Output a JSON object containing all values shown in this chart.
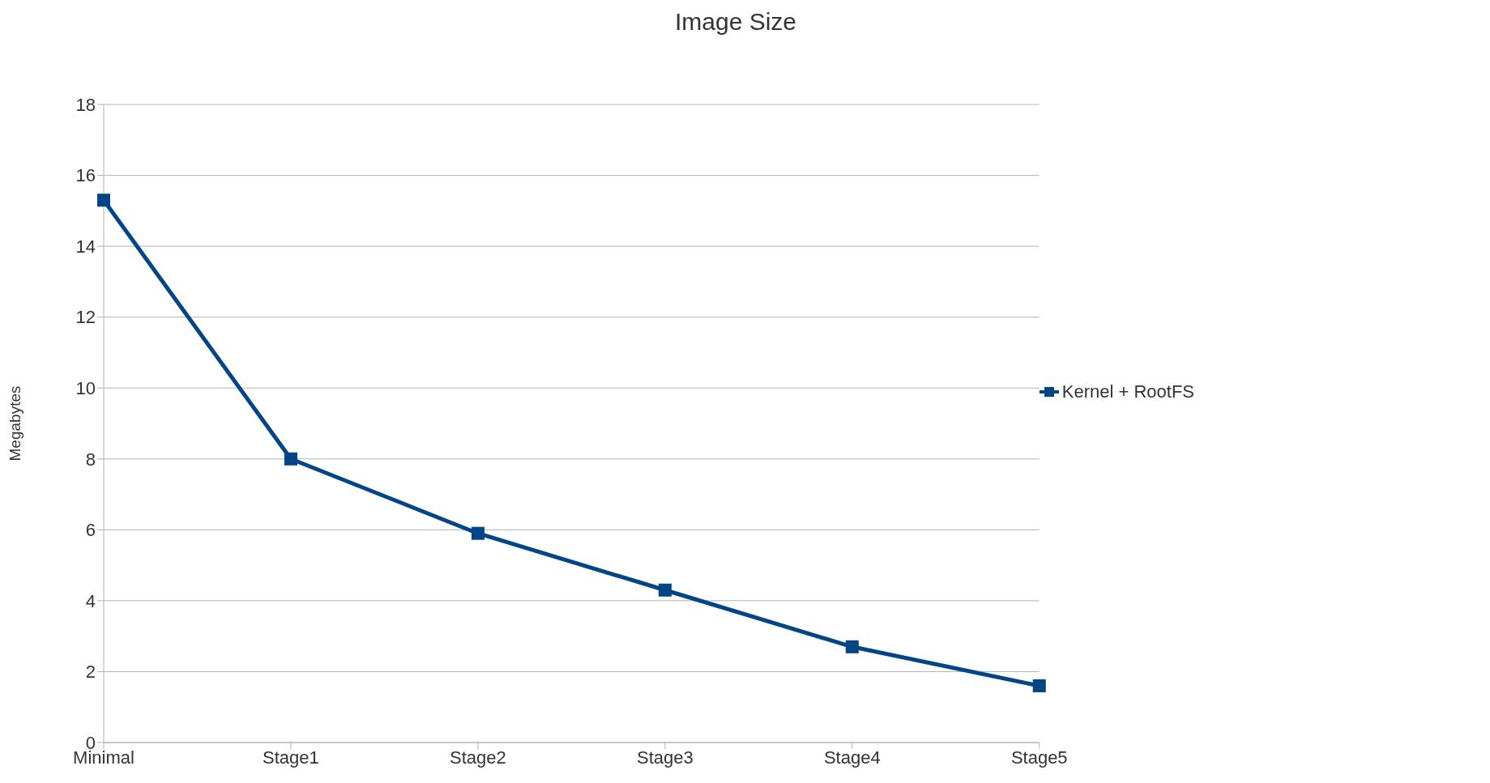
{
  "chart_data": {
    "type": "line",
    "title": "Image Size",
    "ylabel": "Megabytes",
    "categories": [
      "Minimal",
      "Stage1",
      "Stage2",
      "Stage3",
      "Stage4",
      "Stage5"
    ],
    "series": [
      {
        "name": "Kernel + RootFS",
        "color": "#004586",
        "values": [
          15.3,
          8.0,
          5.9,
          4.3,
          2.7,
          1.6
        ]
      }
    ],
    "ylim": [
      0,
      18
    ],
    "yticks": [
      0,
      2,
      4,
      6,
      8,
      10,
      12,
      14,
      16,
      18
    ],
    "grid": "y",
    "legend": "right",
    "marker": "square",
    "line_style": "solid"
  }
}
